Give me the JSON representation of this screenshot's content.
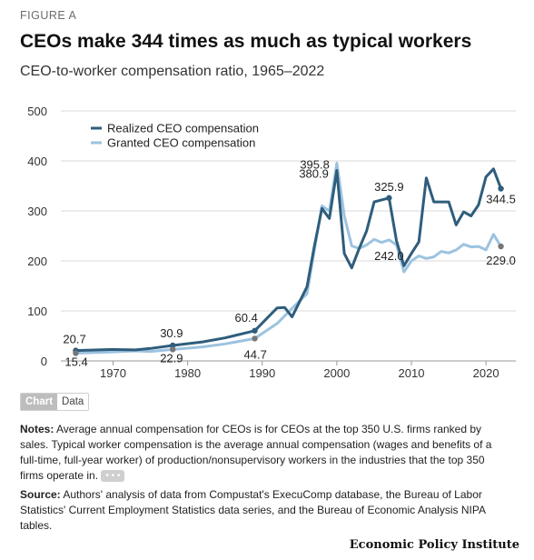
{
  "header": {
    "eyebrow": "FIGURE A",
    "title": "CEOs make 344 times as much as typical workers",
    "subtitle": "CEO-to-worker compensation ratio, 1965–2022"
  },
  "toggle": {
    "chart_label": "Chart",
    "data_label": "Data"
  },
  "notes": {
    "label": "Notes:",
    "text": " Average annual compensation for CEOs is for CEOs at the top 350 U.S. firms ranked by sales. Typical worker compensation is the average annual compensation (wages and benefits of a full-time, full-year worker) of production/nonsupervisory workers in the industries that the top 350 firms operate in. ",
    "more": "• • •"
  },
  "source": {
    "label": "Source:",
    "text": " Authors' analysis of data from Compustat's ExecuComp database, the Bureau of Labor Statistics' Current Employment Statistics data series, and the Bureau of Economic Analysis NIPA tables."
  },
  "brand": "Economic Policy Institute",
  "colors": {
    "realized": "#2f5d7c",
    "granted": "#9cc3e0",
    "grid": "#d9d9d9",
    "endpoint": "#777777"
  },
  "chart_data": {
    "type": "line",
    "title": "CEOs make 344 times as much as typical workers",
    "subtitle": "CEO-to-worker compensation ratio, 1965–2022",
    "xlabel": "",
    "ylabel": "",
    "xlim": [
      1965,
      2022
    ],
    "ylim": [
      0,
      500
    ],
    "yticks": [
      0,
      100,
      200,
      300,
      400,
      500
    ],
    "xticks": [
      1970,
      1980,
      1990,
      2000,
      2010,
      2020
    ],
    "grid": true,
    "legend_position": "top-left",
    "series": [
      {
        "name": "Realized CEO compensation",
        "color": "#2f5d7c",
        "points": [
          [
            1965,
            20.7
          ],
          [
            1968,
            22
          ],
          [
            1970,
            23
          ],
          [
            1973,
            22
          ],
          [
            1975,
            25
          ],
          [
            1978,
            30.9
          ],
          [
            1982,
            38
          ],
          [
            1985,
            46
          ],
          [
            1989,
            60.4
          ],
          [
            1992,
            106
          ],
          [
            1993,
            107
          ],
          [
            1994,
            88
          ],
          [
            1995,
            118
          ],
          [
            1996,
            148
          ],
          [
            1997,
            230
          ],
          [
            1998,
            305
          ],
          [
            1999,
            285
          ],
          [
            2000,
            380.9
          ],
          [
            2001,
            215
          ],
          [
            2002,
            186
          ],
          [
            2003,
            225
          ],
          [
            2004,
            260
          ],
          [
            2005,
            318
          ],
          [
            2006,
            322
          ],
          [
            2007,
            325.9
          ],
          [
            2008,
            240
          ],
          [
            2009,
            190
          ],
          [
            2010,
            215
          ],
          [
            2011,
            238
          ],
          [
            2012,
            366
          ],
          [
            2013,
            318
          ],
          [
            2014,
            318
          ],
          [
            2015,
            318
          ],
          [
            2016,
            272
          ],
          [
            2017,
            298
          ],
          [
            2018,
            290
          ],
          [
            2019,
            312
          ],
          [
            2020,
            368
          ],
          [
            2021,
            384
          ],
          [
            2022,
            344.5
          ]
        ]
      },
      {
        "name": "Granted CEO compensation",
        "color": "#9cc3e0",
        "points": [
          [
            1965,
            15.4
          ],
          [
            1970,
            18
          ],
          [
            1973,
            20
          ],
          [
            1975,
            19
          ],
          [
            1978,
            22.9
          ],
          [
            1982,
            28
          ],
          [
            1985,
            34
          ],
          [
            1989,
            44.7
          ],
          [
            1992,
            75
          ],
          [
            1995,
            120
          ],
          [
            1996,
            134
          ],
          [
            1997,
            222
          ],
          [
            1998,
            310
          ],
          [
            1999,
            300
          ],
          [
            2000,
            395.8
          ],
          [
            2001,
            290
          ],
          [
            2002,
            230
          ],
          [
            2003,
            225
          ],
          [
            2004,
            232
          ],
          [
            2005,
            243
          ],
          [
            2006,
            237
          ],
          [
            2007,
            242.0
          ],
          [
            2008,
            232
          ],
          [
            2009,
            178
          ],
          [
            2010,
            200
          ],
          [
            2011,
            210
          ],
          [
            2012,
            205
          ],
          [
            2013,
            208
          ],
          [
            2014,
            219
          ],
          [
            2015,
            216
          ],
          [
            2016,
            222
          ],
          [
            2017,
            233
          ],
          [
            2018,
            228
          ],
          [
            2019,
            229
          ],
          [
            2020,
            222
          ],
          [
            2021,
            253
          ],
          [
            2022,
            229.0
          ]
        ]
      }
    ],
    "annotations": [
      {
        "text": "20.7",
        "year": 1965,
        "value": 20.7
      },
      {
        "text": "15.4",
        "year": 1965,
        "value": 15.4
      },
      {
        "text": "30.9",
        "year": 1978,
        "value": 30.9
      },
      {
        "text": "22.9",
        "year": 1978,
        "value": 22.9
      },
      {
        "text": "60.4",
        "year": 1989,
        "value": 60.4
      },
      {
        "text": "44.7",
        "year": 1989,
        "value": 44.7
      },
      {
        "text": "395.8",
        "year": 2000,
        "value": 395.8
      },
      {
        "text": "380.9",
        "year": 2000,
        "value": 380.9
      },
      {
        "text": "325.9",
        "year": 2007,
        "value": 325.9
      },
      {
        "text": "242.0",
        "year": 2007,
        "value": 242.0
      },
      {
        "text": "344.5",
        "year": 2022,
        "value": 344.5
      },
      {
        "text": "229.0",
        "year": 2022,
        "value": 229.0
      }
    ]
  }
}
